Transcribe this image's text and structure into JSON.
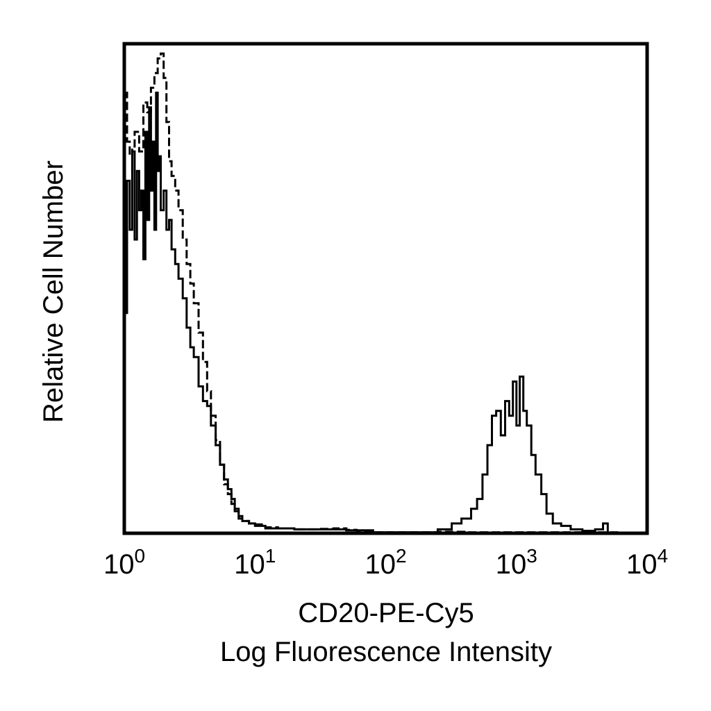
{
  "chart_data": {
    "type": "line",
    "xscale": "log",
    "xlim": [
      1,
      10000
    ],
    "ylim": [
      0,
      100
    ],
    "grid": false,
    "ylabel": "Relative Cell Number",
    "xlabel_lines": [
      "CD20-PE-Cy5",
      "Log Fluorescence Intensity"
    ],
    "x_ticks": [
      {
        "base": "10",
        "exp": "0",
        "value": 1
      },
      {
        "base": "10",
        "exp": "1",
        "value": 10
      },
      {
        "base": "10",
        "exp": "2",
        "value": 100
      },
      {
        "base": "10",
        "exp": "3",
        "value": 1000
      },
      {
        "base": "10",
        "exp": "4",
        "value": 10000
      }
    ],
    "series": [
      {
        "style": "solid",
        "color": "#000000",
        "points": [
          [
            1.0,
            45
          ],
          [
            1.05,
            72
          ],
          [
            1.1,
            62
          ],
          [
            1.15,
            78
          ],
          [
            1.2,
            60
          ],
          [
            1.25,
            74
          ],
          [
            1.3,
            66
          ],
          [
            1.35,
            70
          ],
          [
            1.4,
            56
          ],
          [
            1.45,
            82
          ],
          [
            1.5,
            64
          ],
          [
            1.55,
            87
          ],
          [
            1.6,
            70
          ],
          [
            1.65,
            80
          ],
          [
            1.7,
            62
          ],
          [
            1.75,
            90
          ],
          [
            1.8,
            74
          ],
          [
            1.85,
            77
          ],
          [
            1.9,
            66
          ],
          [
            2.0,
            70
          ],
          [
            2.1,
            62
          ],
          [
            2.2,
            64
          ],
          [
            2.3,
            58
          ],
          [
            2.45,
            55
          ],
          [
            2.6,
            52
          ],
          [
            2.8,
            48
          ],
          [
            3.0,
            42
          ],
          [
            3.2,
            38
          ],
          [
            3.4,
            36
          ],
          [
            3.7,
            30
          ],
          [
            4.0,
            27
          ],
          [
            4.3,
            26
          ],
          [
            4.6,
            22
          ],
          [
            5.0,
            18
          ],
          [
            5.4,
            14
          ],
          [
            5.8,
            11
          ],
          [
            6.2,
            9
          ],
          [
            6.6,
            7
          ],
          [
            7.0,
            5
          ],
          [
            7.5,
            3.5
          ],
          [
            8.0,
            2.5
          ],
          [
            9.0,
            2
          ],
          [
            10.0,
            1.5
          ],
          [
            12.0,
            1
          ],
          [
            15.0,
            1
          ],
          [
            20.0,
            0.8
          ],
          [
            30.0,
            0.8
          ],
          [
            50.0,
            0.6
          ],
          [
            80.0,
            0.2
          ],
          [
            150.0,
            0.2
          ],
          [
            250.0,
            0.8
          ],
          [
            320.0,
            2
          ],
          [
            380.0,
            3
          ],
          [
            450.0,
            5
          ],
          [
            500.0,
            7
          ],
          [
            550.0,
            12
          ],
          [
            600.0,
            18
          ],
          [
            650.0,
            24
          ],
          [
            700.0,
            25
          ],
          [
            760.0,
            20
          ],
          [
            820.0,
            27
          ],
          [
            880.0,
            24
          ],
          [
            940.0,
            31
          ],
          [
            1000.0,
            22
          ],
          [
            1060.0,
            32
          ],
          [
            1130.0,
            25
          ],
          [
            1200.0,
            22
          ],
          [
            1300.0,
            16
          ],
          [
            1400.0,
            12
          ],
          [
            1550.0,
            8
          ],
          [
            1700.0,
            4
          ],
          [
            1900.0,
            2
          ],
          [
            2200.0,
            1.5
          ],
          [
            2600.0,
            0.8
          ],
          [
            3200.0,
            0.5
          ],
          [
            4000.0,
            0.8
          ],
          [
            4600.0,
            2
          ],
          [
            5000.0,
            0.3
          ]
        ]
      },
      {
        "style": "dashed",
        "color": "#000000",
        "points": [
          [
            1.0,
            90
          ],
          [
            1.05,
            80
          ],
          [
            1.1,
            77
          ],
          [
            1.15,
            79
          ],
          [
            1.2,
            82
          ],
          [
            1.3,
            78
          ],
          [
            1.4,
            88
          ],
          [
            1.5,
            86
          ],
          [
            1.6,
            91
          ],
          [
            1.7,
            94
          ],
          [
            1.8,
            97
          ],
          [
            1.9,
            98
          ],
          [
            2.0,
            93
          ],
          [
            2.1,
            84
          ],
          [
            2.2,
            76
          ],
          [
            2.3,
            73
          ],
          [
            2.45,
            70
          ],
          [
            2.6,
            66
          ],
          [
            2.8,
            60
          ],
          [
            3.0,
            55
          ],
          [
            3.2,
            51
          ],
          [
            3.4,
            47
          ],
          [
            3.7,
            41
          ],
          [
            4.0,
            35
          ],
          [
            4.3,
            29
          ],
          [
            4.6,
            24
          ],
          [
            5.0,
            19
          ],
          [
            5.4,
            14
          ],
          [
            5.8,
            10
          ],
          [
            6.2,
            8
          ],
          [
            6.6,
            6
          ],
          [
            7.0,
            4.5
          ],
          [
            7.5,
            3
          ],
          [
            8.0,
            2.5
          ],
          [
            9.0,
            2
          ],
          [
            10.0,
            1.8
          ],
          [
            12.0,
            1.2
          ],
          [
            15.0,
            1
          ],
          [
            20.0,
            0.8
          ],
          [
            30.0,
            0.9
          ],
          [
            40.0,
            1
          ],
          [
            50.0,
            0.7
          ],
          [
            60.0,
            0.5
          ],
          [
            80.0,
            0.2
          ],
          [
            150.0,
            0.2
          ],
          [
            250.0,
            0.3
          ],
          [
            400.0,
            0.2
          ],
          [
            1000.0,
            0.2
          ],
          [
            3000.0,
            0.2
          ],
          [
            6000.0,
            0.2
          ]
        ]
      }
    ]
  }
}
